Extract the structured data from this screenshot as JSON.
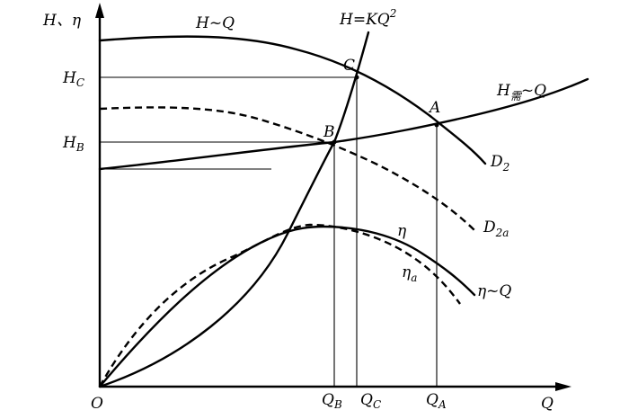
{
  "axes": {
    "y_label": "H、η",
    "x_label": "Q",
    "origin": "O"
  },
  "y_ticks": [
    {
      "main": "H",
      "sub": "C"
    },
    {
      "main": "H",
      "sub": "B"
    }
  ],
  "x_ticks": [
    {
      "main": "Q",
      "sub": "B"
    },
    {
      "main": "Q",
      "sub": "C"
    },
    {
      "main": "Q",
      "sub": "A"
    }
  ],
  "points": {
    "A": "A",
    "B": "B",
    "C": "C"
  },
  "curve_labels": {
    "hq": "H~Q",
    "system_main": "H=KQ",
    "system_sup": "2",
    "required_main": "H",
    "required_sub": "需",
    "required_tail": "~Q",
    "d2_main": "D",
    "d2_sub": "2",
    "d2a_main": "D",
    "d2a_sub": "2a",
    "eta": "η",
    "eta_a_main": "η",
    "eta_a_sub": "a",
    "eta_q": "η~Q"
  }
}
